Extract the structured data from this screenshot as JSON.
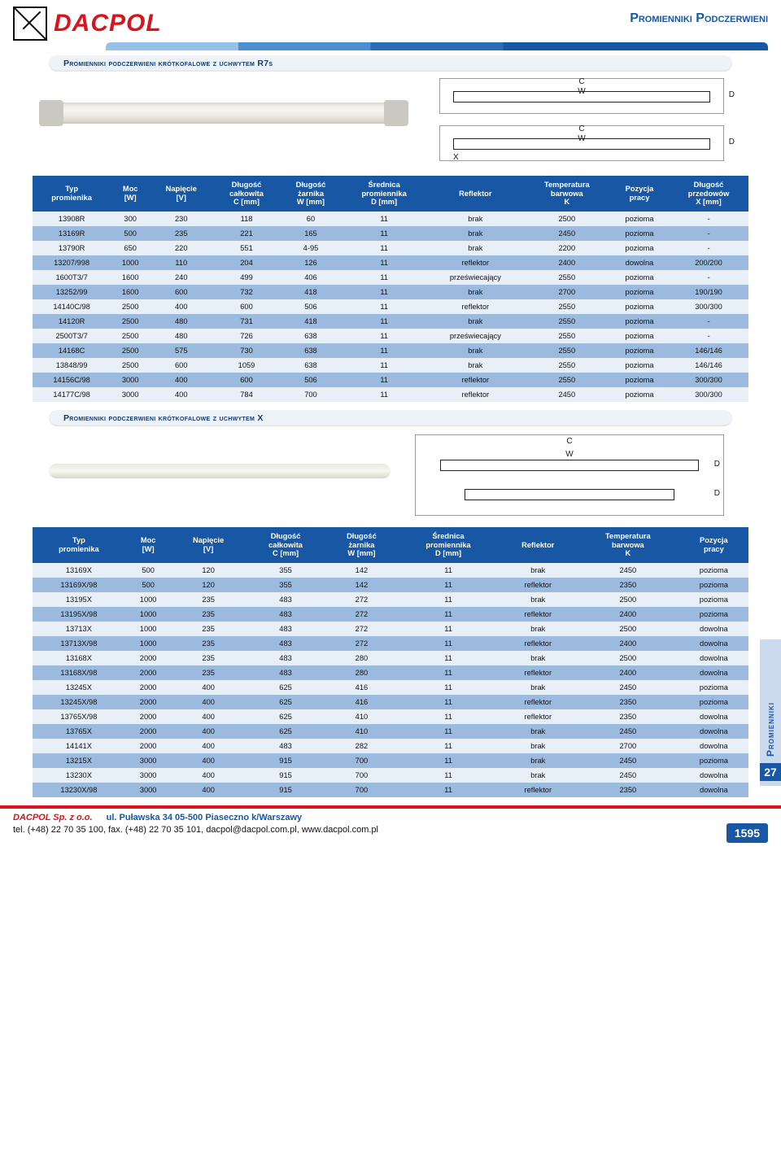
{
  "brand": "DACPOL",
  "page_subject": "Promienniki Podczerwieni",
  "t1_section": "Promienniki podczerwieni krótkofalowe z uchwytem R7s",
  "t2_section": "Promienniki podczerwieni krótkofalowe z uchwytem X",
  "schem_labels": {
    "c": "C",
    "w": "W",
    "d": "D",
    "x": "X"
  },
  "t1_headers": [
    "Typ\npromienika",
    "Moc\n[W]",
    "Napięcie\n[V]",
    "Długość\ncałkowita\nC [mm]",
    "Długość\nżarnika\nW [mm]",
    "Średnica\npromiennika\nD [mm]",
    "Reflektor",
    "Temperatura\nbarwowa\nK",
    "Pozycja\npracy",
    "Długość\nprzedowów\nX [mm]"
  ],
  "t1_rows": [
    [
      "13908R",
      "300",
      "230",
      "118",
      "60",
      "11",
      "brak",
      "2500",
      "pozioma",
      "-"
    ],
    [
      "13169R",
      "500",
      "235",
      "221",
      "165",
      "11",
      "brak",
      "2450",
      "pozioma",
      "-"
    ],
    [
      "13790R",
      "650",
      "220",
      "551",
      "4-95",
      "11",
      "brak",
      "2200",
      "pozioma",
      "-"
    ],
    [
      "13207/998",
      "1000",
      "110",
      "204",
      "126",
      "11",
      "reflektor",
      "2400",
      "dowolna",
      "200/200"
    ],
    [
      "1600T3/7",
      "1600",
      "240",
      "499",
      "406",
      "11",
      "przeświecający",
      "2550",
      "pozioma",
      "-"
    ],
    [
      "13252/99",
      "1600",
      "600",
      "732",
      "418",
      "11",
      "brak",
      "2700",
      "pozioma",
      "190/190"
    ],
    [
      "14140C/98",
      "2500",
      "400",
      "600",
      "506",
      "11",
      "reflektor",
      "2550",
      "pozioma",
      "300/300"
    ],
    [
      "14120R",
      "2500",
      "480",
      "731",
      "418",
      "11",
      "brak",
      "2550",
      "pozioma",
      "-"
    ],
    [
      "2500T3/7",
      "2500",
      "480",
      "726",
      "638",
      "11",
      "przeświecający",
      "2550",
      "pozioma",
      "-"
    ],
    [
      "14168C",
      "2500",
      "575",
      "730",
      "638",
      "11",
      "brak",
      "2550",
      "pozioma",
      "146/146"
    ],
    [
      "13848/99",
      "2500",
      "600",
      "1059",
      "638",
      "11",
      "brak",
      "2550",
      "pozioma",
      "146/146"
    ],
    [
      "14156C/98",
      "3000",
      "400",
      "600",
      "506",
      "11",
      "reflektor",
      "2550",
      "pozioma",
      "300/300"
    ],
    [
      "14177C/98",
      "3000",
      "400",
      "784",
      "700",
      "11",
      "reflektor",
      "2450",
      "pozioma",
      "300/300"
    ]
  ],
  "t2_headers": [
    "Typ\npromienika",
    "Moc\n[W]",
    "Napięcie\n[V]",
    "Długość\ncałkowita\nC [mm]",
    "Długość\nżarnika\nW [mm]",
    "Średnica\npromiennika\nD [mm]",
    "Reflektor",
    "Temperatura\nbarwowa\nK",
    "Pozycja\npracy"
  ],
  "t2_rows": [
    [
      "13169X",
      "500",
      "120",
      "355",
      "142",
      "11",
      "brak",
      "2450",
      "pozioma"
    ],
    [
      "13169X/98",
      "500",
      "120",
      "355",
      "142",
      "11",
      "reflektor",
      "2350",
      "pozioma"
    ],
    [
      "13195X",
      "1000",
      "235",
      "483",
      "272",
      "11",
      "brak",
      "2500",
      "pozioma"
    ],
    [
      "13195X/98",
      "1000",
      "235",
      "483",
      "272",
      "11",
      "reflektor",
      "2400",
      "pozioma"
    ],
    [
      "13713X",
      "1000",
      "235",
      "483",
      "272",
      "11",
      "brak",
      "2500",
      "dowolna"
    ],
    [
      "13713X/98",
      "1000",
      "235",
      "483",
      "272",
      "11",
      "reflektor",
      "2400",
      "dowolna"
    ],
    [
      "13168X",
      "2000",
      "235",
      "483",
      "280",
      "11",
      "brak",
      "2500",
      "dowolna"
    ],
    [
      "13168X/98",
      "2000",
      "235",
      "483",
      "280",
      "11",
      "reflektor",
      "2400",
      "dowolna"
    ],
    [
      "13245X",
      "2000",
      "400",
      "625",
      "416",
      "11",
      "brak",
      "2450",
      "pozioma"
    ],
    [
      "13245X/98",
      "2000",
      "400",
      "625",
      "416",
      "11",
      "reflektor",
      "2350",
      "pozioma"
    ],
    [
      "13765X/98",
      "2000",
      "400",
      "625",
      "410",
      "11",
      "reflektor",
      "2350",
      "dowolna"
    ],
    [
      "13765X",
      "2000",
      "400",
      "625",
      "410",
      "11",
      "brak",
      "2450",
      "dowolna"
    ],
    [
      "14141X",
      "2000",
      "400",
      "483",
      "282",
      "11",
      "brak",
      "2700",
      "dowolna"
    ],
    [
      "13215X",
      "3000",
      "400",
      "915",
      "700",
      "11",
      "brak",
      "2450",
      "pozioma"
    ],
    [
      "13230X",
      "3000",
      "400",
      "915",
      "700",
      "11",
      "brak",
      "2450",
      "dowolna"
    ],
    [
      "13230X/98",
      "3000",
      "400",
      "915",
      "700",
      "11",
      "reflektor",
      "2350",
      "dowolna"
    ]
  ],
  "side_tab_label": "Promienniki",
  "side_tab_number": "27",
  "footer": {
    "company": "DACPOL Sp. z o.o.",
    "address": "ul. Puławska 34    05-500 Piaseczno k/Warszawy",
    "contact": "tel. (+48) 22 70 35 100, fax. (+48) 22 70 35 101,  dacpol@dacpol.com.pl,  www.dacpol.com.pl",
    "page_number": "1595"
  },
  "colors": {
    "brand_red": "#d8141e",
    "brand_blue": "#1857a4",
    "row_light": "#e9eff7",
    "row_dark": "#9cbadd",
    "side_tab_bg": "#cbd9ec"
  }
}
